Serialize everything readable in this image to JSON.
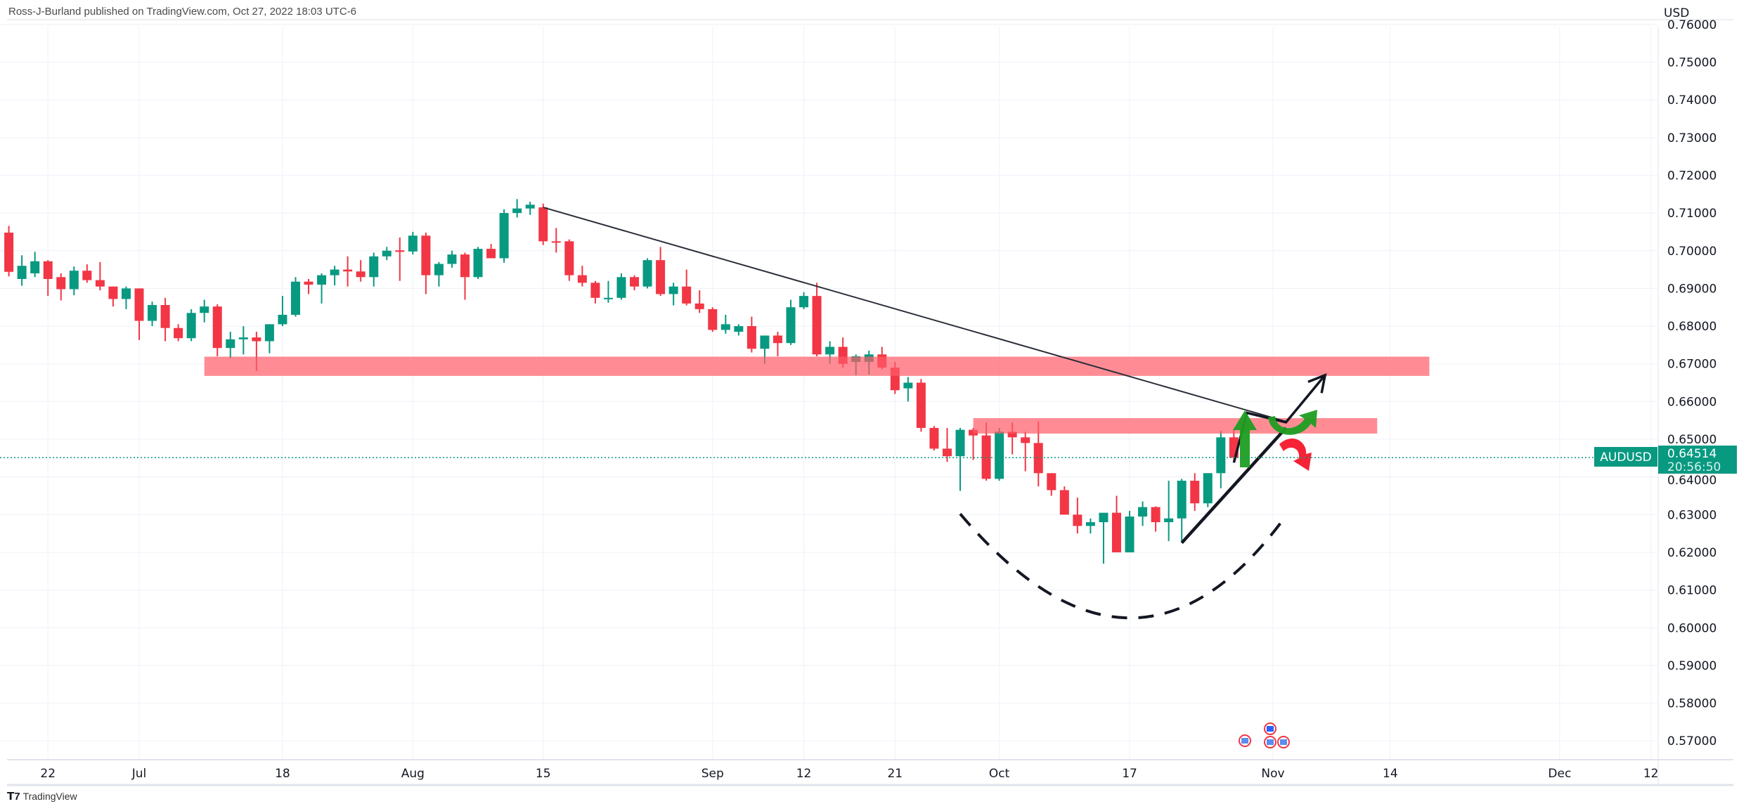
{
  "header": {
    "attribution": "Ross-J-Burland published on TradingView.com, Oct 27, 2022 18:03 UTC-6"
  },
  "brand": {
    "name": "TradingView",
    "icon": "tradingview-logo-icon"
  },
  "colors": {
    "up": "#089981",
    "down": "#f23645",
    "band": "#ff5b68",
    "grid": "#f0f3fa",
    "price_tag": "#089981",
    "annotation_green": "#1e9e22",
    "annotation_red": "#f5162a",
    "drawing": "#131722"
  },
  "chart_data": {
    "type": "candlestick",
    "symbol": "AUDUSD",
    "currency": "USD",
    "last_price": "0.64514",
    "countdown": "20:56:50",
    "ylim": [
      0.565,
      0.762
    ],
    "grid": true,
    "y_ticks": [
      "0.76000",
      "0.75000",
      "0.74000",
      "0.73000",
      "0.72000",
      "0.71000",
      "0.70000",
      "0.69000",
      "0.68000",
      "0.67000",
      "0.66000",
      "0.65000",
      "0.64000",
      "0.63000",
      "0.62000",
      "0.61000",
      "0.60000",
      "0.59000",
      "0.58000",
      "0.57000"
    ],
    "x_ticks": [
      {
        "label": "22",
        "date": "2022-06-22"
      },
      {
        "label": "Jul",
        "date": "2022-07-01"
      },
      {
        "label": "18",
        "date": "2022-07-18"
      },
      {
        "label": "Aug",
        "date": "2022-08-01"
      },
      {
        "label": "15",
        "date": "2022-08-15"
      },
      {
        "label": "Sep",
        "date": "2022-09-01"
      },
      {
        "label": "12",
        "date": "2022-09-12"
      },
      {
        "label": "21",
        "date": "2022-09-21"
      },
      {
        "label": "Oct",
        "date": "2022-10-03"
      },
      {
        "label": "17",
        "date": "2022-10-17"
      },
      {
        "label": "Nov",
        "date": "2022-11-01"
      },
      {
        "label": "14",
        "date": "2022-11-14"
      },
      {
        "label": "Dec",
        "date": "2022-12-01"
      },
      {
        "label": "12",
        "date": "2022-12-12"
      }
    ],
    "candles_columns": [
      "date",
      "open",
      "high",
      "low",
      "close"
    ],
    "candles": [
      [
        "2022-06-17",
        0.7048,
        0.7066,
        0.6932,
        0.6944
      ],
      [
        "2022-06-20",
        0.6925,
        0.6988,
        0.6907,
        0.696
      ],
      [
        "2022-06-21",
        0.694,
        0.6997,
        0.693,
        0.6972
      ],
      [
        "2022-06-22",
        0.6972,
        0.6975,
        0.688,
        0.6925
      ],
      [
        "2022-06-23",
        0.693,
        0.694,
        0.6868,
        0.6898
      ],
      [
        "2022-06-24",
        0.6898,
        0.6958,
        0.6882,
        0.6947
      ],
      [
        "2022-06-27",
        0.6947,
        0.6964,
        0.6915,
        0.6922
      ],
      [
        "2022-06-28",
        0.6922,
        0.697,
        0.6895,
        0.6905
      ],
      [
        "2022-06-29",
        0.6905,
        0.6905,
        0.6852,
        0.6872
      ],
      [
        "2022-06-30",
        0.6872,
        0.6905,
        0.6845,
        0.69
      ],
      [
        "2022-07-01",
        0.69,
        0.69,
        0.6763,
        0.6814
      ],
      [
        "2022-07-04",
        0.6814,
        0.6865,
        0.68,
        0.6856
      ],
      [
        "2022-07-05",
        0.6856,
        0.6875,
        0.676,
        0.6795
      ],
      [
        "2022-07-06",
        0.6795,
        0.6805,
        0.676,
        0.6768
      ],
      [
        "2022-07-07",
        0.6768,
        0.6845,
        0.676,
        0.6835
      ],
      [
        "2022-07-08",
        0.6835,
        0.687,
        0.681,
        0.6852
      ],
      [
        "2022-07-11",
        0.6852,
        0.6858,
        0.672,
        0.6742
      ],
      [
        "2022-07-12",
        0.6742,
        0.6785,
        0.6715,
        0.6765
      ],
      [
        "2022-07-13",
        0.6765,
        0.68,
        0.6725,
        0.677
      ],
      [
        "2022-07-14",
        0.677,
        0.6785,
        0.6681,
        0.676
      ],
      [
        "2022-07-15",
        0.676,
        0.6805,
        0.6728,
        0.6805
      ],
      [
        "2022-07-18",
        0.6805,
        0.688,
        0.68,
        0.683
      ],
      [
        "2022-07-19",
        0.683,
        0.693,
        0.6825,
        0.6918
      ],
      [
        "2022-07-20",
        0.6918,
        0.6925,
        0.6885,
        0.691
      ],
      [
        "2022-07-21",
        0.691,
        0.694,
        0.686,
        0.6935
      ],
      [
        "2022-07-22",
        0.6935,
        0.696,
        0.6908,
        0.695
      ],
      [
        "2022-07-25",
        0.695,
        0.6985,
        0.6905,
        0.6945
      ],
      [
        "2022-07-26",
        0.6945,
        0.6975,
        0.6918,
        0.693
      ],
      [
        "2022-07-27",
        0.693,
        0.6995,
        0.6905,
        0.6985
      ],
      [
        "2022-07-28",
        0.6985,
        0.701,
        0.6975,
        0.7
      ],
      [
        "2022-07-29",
        0.7001,
        0.7035,
        0.692,
        0.6997
      ],
      [
        "2022-08-01",
        0.6998,
        0.705,
        0.699,
        0.704
      ],
      [
        "2022-08-02",
        0.704,
        0.7048,
        0.6885,
        0.6935
      ],
      [
        "2022-08-03",
        0.6935,
        0.697,
        0.6905,
        0.6965
      ],
      [
        "2022-08-04",
        0.6965,
        0.7,
        0.6955,
        0.699
      ],
      [
        "2022-08-05",
        0.699,
        0.6995,
        0.687,
        0.693
      ],
      [
        "2022-08-08",
        0.693,
        0.701,
        0.6925,
        0.7005
      ],
      [
        "2022-08-09",
        0.7005,
        0.7018,
        0.698,
        0.698
      ],
      [
        "2022-08-10",
        0.698,
        0.711,
        0.6968,
        0.71
      ],
      [
        "2022-08-11",
        0.71,
        0.7137,
        0.7088,
        0.7112
      ],
      [
        "2022-08-12",
        0.7112,
        0.713,
        0.7095,
        0.7122
      ],
      [
        "2022-08-15",
        0.7115,
        0.7125,
        0.7015,
        0.7025
      ],
      [
        "2022-08-16",
        0.7025,
        0.706,
        0.6995,
        0.7022
      ],
      [
        "2022-08-17",
        0.7025,
        0.703,
        0.692,
        0.6935
      ],
      [
        "2022-08-18",
        0.6935,
        0.696,
        0.6905,
        0.6915
      ],
      [
        "2022-08-19",
        0.6915,
        0.692,
        0.686,
        0.6875
      ],
      [
        "2022-08-22",
        0.6872,
        0.692,
        0.6862,
        0.6875
      ],
      [
        "2022-08-23",
        0.6875,
        0.694,
        0.687,
        0.693
      ],
      [
        "2022-08-24",
        0.693,
        0.6935,
        0.6895,
        0.6905
      ],
      [
        "2022-08-25",
        0.6905,
        0.698,
        0.69,
        0.6975
      ],
      [
        "2022-08-26",
        0.6975,
        0.701,
        0.688,
        0.6885
      ],
      [
        "2022-08-29",
        0.6885,
        0.6915,
        0.6855,
        0.6905
      ],
      [
        "2022-08-30",
        0.6905,
        0.695,
        0.6855,
        0.686
      ],
      [
        "2022-08-31",
        0.686,
        0.6895,
        0.6835,
        0.6845
      ],
      [
        "2022-09-01",
        0.6845,
        0.685,
        0.6785,
        0.679
      ],
      [
        "2022-09-02",
        0.679,
        0.683,
        0.678,
        0.6805
      ],
      [
        "2022-09-05",
        0.6785,
        0.6805,
        0.6775,
        0.68
      ],
      [
        "2022-09-06",
        0.68,
        0.6825,
        0.673,
        0.674
      ],
      [
        "2022-09-07",
        0.674,
        0.6775,
        0.67,
        0.6775
      ],
      [
        "2022-09-08",
        0.6775,
        0.6785,
        0.672,
        0.6755
      ],
      [
        "2022-09-09",
        0.6755,
        0.687,
        0.675,
        0.685
      ],
      [
        "2022-09-12",
        0.685,
        0.689,
        0.6845,
        0.688
      ],
      [
        "2022-09-13",
        0.688,
        0.6915,
        0.672,
        0.6725
      ],
      [
        "2022-09-14",
        0.6725,
        0.676,
        0.67,
        0.6745
      ],
      [
        "2022-09-15",
        0.6745,
        0.677,
        0.669,
        0.67
      ],
      [
        "2022-09-16",
        0.6705,
        0.6725,
        0.667,
        0.672
      ],
      [
        "2022-09-19",
        0.6705,
        0.6735,
        0.6672,
        0.6725
      ],
      [
        "2022-09-20",
        0.6725,
        0.6745,
        0.6685,
        0.669
      ],
      [
        "2022-09-21",
        0.669,
        0.6705,
        0.662,
        0.663
      ],
      [
        "2022-09-22",
        0.6635,
        0.6665,
        0.66,
        0.665
      ],
      [
        "2022-09-23",
        0.665,
        0.666,
        0.652,
        0.653
      ],
      [
        "2022-09-26",
        0.653,
        0.6535,
        0.647,
        0.6475
      ],
      [
        "2022-09-27",
        0.6475,
        0.653,
        0.644,
        0.6455
      ],
      [
        "2022-09-28",
        0.6455,
        0.653,
        0.6363,
        0.6525
      ],
      [
        "2022-09-29",
        0.6525,
        0.653,
        0.6445,
        0.651
      ],
      [
        "2022-09-30",
        0.651,
        0.6545,
        0.639,
        0.6395
      ],
      [
        "2022-10-03",
        0.6395,
        0.653,
        0.639,
        0.652
      ],
      [
        "2022-10-04",
        0.652,
        0.6545,
        0.646,
        0.6505
      ],
      [
        "2022-10-05",
        0.6505,
        0.652,
        0.6415,
        0.649
      ],
      [
        "2022-10-06",
        0.649,
        0.6547,
        0.6375,
        0.641
      ],
      [
        "2022-10-07",
        0.641,
        0.641,
        0.635,
        0.6365
      ],
      [
        "2022-10-10",
        0.6365,
        0.6375,
        0.63,
        0.63
      ],
      [
        "2022-10-11",
        0.63,
        0.6345,
        0.625,
        0.627
      ],
      [
        "2022-10-12",
        0.627,
        0.629,
        0.625,
        0.628
      ],
      [
        "2022-10-13",
        0.628,
        0.63,
        0.617,
        0.6305
      ],
      [
        "2022-10-14",
        0.6305,
        0.635,
        0.62,
        0.62
      ],
      [
        "2022-10-17",
        0.62,
        0.631,
        0.62,
        0.6295
      ],
      [
        "2022-10-18",
        0.6295,
        0.6335,
        0.627,
        0.632
      ],
      [
        "2022-10-19",
        0.632,
        0.6322,
        0.6255,
        0.628
      ],
      [
        "2022-10-20",
        0.628,
        0.639,
        0.623,
        0.629
      ],
      [
        "2022-10-21",
        0.629,
        0.6395,
        0.623,
        0.639
      ],
      [
        "2022-10-24",
        0.639,
        0.641,
        0.631,
        0.633
      ],
      [
        "2022-10-25",
        0.633,
        0.641,
        0.632,
        0.641
      ],
      [
        "2022-10-26",
        0.641,
        0.6522,
        0.637,
        0.6505
      ],
      [
        "2022-10-27",
        0.6505,
        0.6525,
        0.644,
        0.6451
      ]
    ],
    "drawings": {
      "resistance_zones": [
        {
          "from": "2022-07-08",
          "to": "2022-11-17",
          "top": 0.6719,
          "bottom": 0.6668
        },
        {
          "from": "2022-09-29",
          "to": "2022-11-11",
          "top": 0.6556,
          "bottom": 0.6515
        }
      ],
      "trendline": [
        [
          "2022-08-15",
          0.7115
        ],
        [
          "2022-11-02",
          0.6547
        ]
      ],
      "support_line": [
        [
          "2022-10-21",
          0.6225
        ],
        [
          "2022-11-02",
          0.653
        ]
      ],
      "projection_path": [
        [
          "2022-10-27",
          0.6438
        ],
        [
          "2022-10-28",
          0.657
        ],
        [
          "2022-11-02",
          0.6545
        ],
        [
          "2022-11-07",
          0.667
        ]
      ],
      "rounding_bottom": [
        [
          "2022-09-28",
          0.6302
        ],
        [
          "2022-10-17",
          0.6026
        ],
        [
          "2022-11-02",
          0.6297
        ]
      ]
    },
    "events": [
      "flag-au-icon",
      "flag-us-icon",
      "flag-us-icon",
      "flag-us-icon"
    ]
  }
}
